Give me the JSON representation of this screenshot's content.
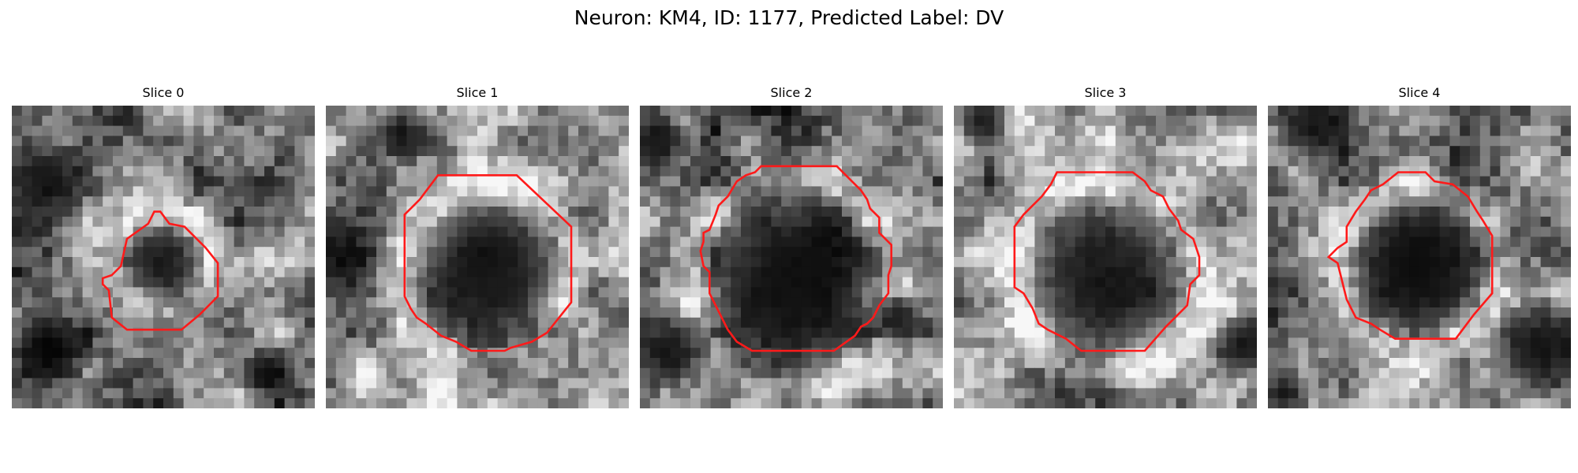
{
  "figure": {
    "title": "Neuron: KM4, ID: 1177, Predicted Label: DV",
    "outline_color": "#ff1a1a",
    "colormap": "gray",
    "grid_cells": 30
  },
  "panels": [
    {
      "title": "Slice 0",
      "seed": 11,
      "background": 0.5,
      "cell_center": [
        0.5,
        0.51
      ],
      "cell_radius": 0.14,
      "cell_darkness": 0.8,
      "extra_dark": [
        [
          0.1,
          0.25,
          0.17
        ],
        [
          0.12,
          0.8,
          0.14
        ],
        [
          0.85,
          0.88,
          0.1
        ]
      ]
    },
    {
      "title": "Slice 1",
      "seed": 23,
      "background": 0.6,
      "cell_center": [
        0.53,
        0.55
      ],
      "cell_radius": 0.26,
      "cell_darkness": 0.92,
      "extra_dark": [
        [
          0.05,
          0.5,
          0.14
        ],
        [
          0.25,
          0.1,
          0.1
        ]
      ]
    },
    {
      "title": "Slice 2",
      "seed": 37,
      "background": 0.48,
      "cell_center": [
        0.51,
        0.58
      ],
      "cell_radius": 0.31,
      "cell_darkness": 0.95,
      "extra_dark": [
        [
          0.05,
          0.12,
          0.12
        ],
        [
          0.1,
          0.8,
          0.14
        ],
        [
          0.85,
          0.7,
          0.1
        ]
      ]
    },
    {
      "title": "Slice 3",
      "seed": 41,
      "background": 0.58,
      "cell_center": [
        0.5,
        0.57
      ],
      "cell_radius": 0.28,
      "cell_darkness": 0.85,
      "extra_dark": [
        [
          0.1,
          0.05,
          0.1
        ],
        [
          0.95,
          0.8,
          0.12
        ]
      ]
    },
    {
      "title": "Slice 4",
      "seed": 53,
      "background": 0.55,
      "cell_center": [
        0.5,
        0.53
      ],
      "cell_radius": 0.24,
      "cell_darkness": 0.93,
      "extra_dark": [
        [
          0.15,
          0.08,
          0.14
        ],
        [
          0.9,
          0.8,
          0.18
        ],
        [
          0.05,
          0.95,
          0.1
        ]
      ]
    }
  ],
  "outlines": [
    [
      [
        0.33,
        0.56
      ],
      [
        0.36,
        0.53
      ],
      [
        0.38,
        0.44
      ],
      [
        0.45,
        0.39
      ],
      [
        0.47,
        0.35
      ],
      [
        0.49,
        0.35
      ],
      [
        0.52,
        0.39
      ],
      [
        0.57,
        0.4
      ],
      [
        0.64,
        0.47
      ],
      [
        0.68,
        0.52
      ],
      [
        0.68,
        0.63
      ],
      [
        0.62,
        0.69
      ],
      [
        0.56,
        0.74
      ],
      [
        0.38,
        0.74
      ],
      [
        0.33,
        0.7
      ],
      [
        0.32,
        0.61
      ],
      [
        0.3,
        0.59
      ],
      [
        0.3,
        0.57
      ]
    ],
    [
      [
        0.26,
        0.36
      ],
      [
        0.29,
        0.33
      ],
      [
        0.31,
        0.31
      ],
      [
        0.37,
        0.23
      ],
      [
        0.63,
        0.23
      ],
      [
        0.81,
        0.4
      ],
      [
        0.81,
        0.65
      ],
      [
        0.73,
        0.75
      ],
      [
        0.68,
        0.78
      ],
      [
        0.61,
        0.8
      ],
      [
        0.59,
        0.81
      ],
      [
        0.48,
        0.81
      ],
      [
        0.43,
        0.78
      ],
      [
        0.38,
        0.76
      ],
      [
        0.33,
        0.72
      ],
      [
        0.3,
        0.7
      ],
      [
        0.28,
        0.67
      ],
      [
        0.26,
        0.63
      ]
    ],
    [
      [
        0.23,
        0.41
      ],
      [
        0.25,
        0.36
      ],
      [
        0.26,
        0.33
      ],
      [
        0.29,
        0.3
      ],
      [
        0.32,
        0.25
      ],
      [
        0.35,
        0.23
      ],
      [
        0.38,
        0.22
      ],
      [
        0.4,
        0.2
      ],
      [
        0.65,
        0.2
      ],
      [
        0.71,
        0.26
      ],
      [
        0.73,
        0.28
      ],
      [
        0.75,
        0.31
      ],
      [
        0.76,
        0.34
      ],
      [
        0.79,
        0.37
      ],
      [
        0.79,
        0.42
      ],
      [
        0.83,
        0.46
      ],
      [
        0.83,
        0.53
      ],
      [
        0.82,
        0.56
      ],
      [
        0.82,
        0.62
      ],
      [
        0.79,
        0.66
      ],
      [
        0.77,
        0.7
      ],
      [
        0.75,
        0.72
      ],
      [
        0.73,
        0.73
      ],
      [
        0.71,
        0.76
      ],
      [
        0.64,
        0.81
      ],
      [
        0.37,
        0.81
      ],
      [
        0.32,
        0.78
      ],
      [
        0.29,
        0.74
      ],
      [
        0.23,
        0.62
      ],
      [
        0.23,
        0.55
      ],
      [
        0.21,
        0.53
      ],
      [
        0.2,
        0.48
      ],
      [
        0.21,
        0.45
      ],
      [
        0.21,
        0.42
      ]
    ],
    [
      [
        0.23,
        0.36
      ],
      [
        0.26,
        0.33
      ],
      [
        0.29,
        0.3
      ],
      [
        0.32,
        0.26
      ],
      [
        0.34,
        0.22
      ],
      [
        0.59,
        0.22
      ],
      [
        0.63,
        0.25
      ],
      [
        0.65,
        0.28
      ],
      [
        0.69,
        0.3
      ],
      [
        0.71,
        0.34
      ],
      [
        0.74,
        0.38
      ],
      [
        0.75,
        0.41
      ],
      [
        0.79,
        0.44
      ],
      [
        0.81,
        0.5
      ],
      [
        0.81,
        0.56
      ],
      [
        0.78,
        0.59
      ],
      [
        0.77,
        0.66
      ],
      [
        0.73,
        0.7
      ],
      [
        0.7,
        0.73
      ],
      [
        0.63,
        0.81
      ],
      [
        0.42,
        0.81
      ],
      [
        0.37,
        0.77
      ],
      [
        0.31,
        0.74
      ],
      [
        0.28,
        0.72
      ],
      [
        0.26,
        0.67
      ],
      [
        0.23,
        0.62
      ],
      [
        0.2,
        0.6
      ],
      [
        0.2,
        0.4
      ]
    ],
    [
      [
        0.29,
        0.35
      ],
      [
        0.32,
        0.31
      ],
      [
        0.34,
        0.28
      ],
      [
        0.38,
        0.26
      ],
      [
        0.43,
        0.22
      ],
      [
        0.52,
        0.22
      ],
      [
        0.55,
        0.25
      ],
      [
        0.61,
        0.26
      ],
      [
        0.66,
        0.3
      ],
      [
        0.69,
        0.35
      ],
      [
        0.71,
        0.38
      ],
      [
        0.74,
        0.43
      ],
      [
        0.74,
        0.62
      ],
      [
        0.68,
        0.69
      ],
      [
        0.62,
        0.77
      ],
      [
        0.42,
        0.77
      ],
      [
        0.37,
        0.74
      ],
      [
        0.34,
        0.72
      ],
      [
        0.29,
        0.7
      ],
      [
        0.26,
        0.64
      ],
      [
        0.23,
        0.52
      ],
      [
        0.2,
        0.5
      ],
      [
        0.23,
        0.47
      ],
      [
        0.26,
        0.45
      ],
      [
        0.26,
        0.4
      ]
    ]
  ]
}
